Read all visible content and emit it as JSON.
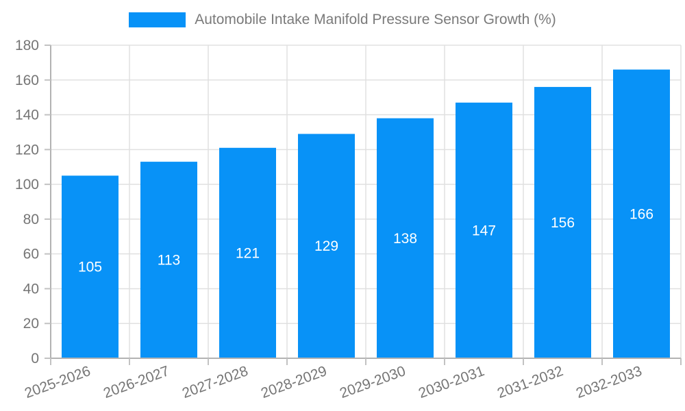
{
  "legend": {
    "position": "top",
    "items": [
      {
        "label": "Automobile Intake Manifold Pressure Sensor Growth (%)",
        "swatch_color": "#0892f7"
      }
    ]
  },
  "chart_data": {
    "type": "bar",
    "title": "Automobile Intake Manifold Pressure Sensor Growth (%)",
    "categories": [
      "2025-2026",
      "2026-2027",
      "2027-2028",
      "2028-2029",
      "2029-2030",
      "2030-2031",
      "2031-2032",
      "2032-2033"
    ],
    "values": [
      105,
      113,
      121,
      129,
      138,
      147,
      156,
      166
    ],
    "bar_value_labels": [
      "105",
      "113",
      "121",
      "129",
      "138",
      "147",
      "156",
      "166"
    ],
    "xlabel": "",
    "ylabel": "",
    "ylim": [
      0,
      180
    ],
    "ytick_step": 20,
    "yticks": [
      0,
      20,
      40,
      60,
      80,
      100,
      120,
      140,
      160,
      180
    ],
    "grid": true,
    "legend_position": "top",
    "x_tick_rotation_deg": -20,
    "colors": {
      "bar": "#0892f7",
      "bar_label": "#ffffff",
      "axis": "#b2b2b2",
      "tick": "#c2c2c2",
      "grid": "#e0e0e0",
      "text": "#757575",
      "title": "#7a7a7a",
      "background": "#ffffff"
    }
  }
}
